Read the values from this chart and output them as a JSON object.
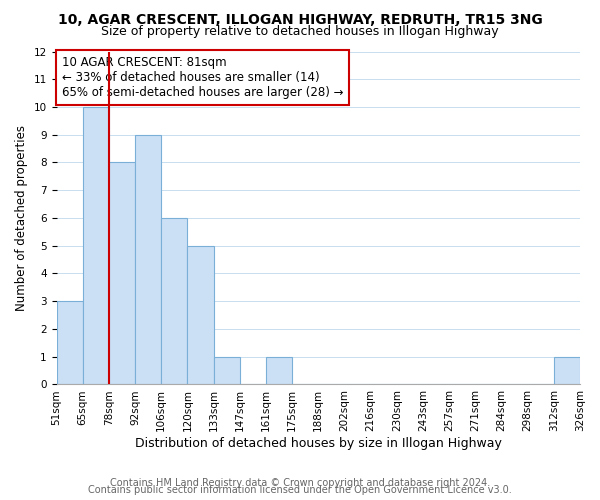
{
  "title": "10, AGAR CRESCENT, ILLOGAN HIGHWAY, REDRUTH, TR15 3NG",
  "subtitle": "Size of property relative to detached houses in Illogan Highway",
  "xlabel": "Distribution of detached houses by size in Illogan Highway",
  "ylabel": "Number of detached properties",
  "bin_labels": [
    "51sqm",
    "65sqm",
    "78sqm",
    "92sqm",
    "106sqm",
    "120sqm",
    "133sqm",
    "147sqm",
    "161sqm",
    "175sqm",
    "188sqm",
    "202sqm",
    "216sqm",
    "230sqm",
    "243sqm",
    "257sqm",
    "271sqm",
    "284sqm",
    "298sqm",
    "312sqm",
    "326sqm"
  ],
  "bar_values": [
    3,
    10,
    8,
    9,
    6,
    5,
    1,
    0,
    1,
    0,
    0,
    0,
    0,
    0,
    0,
    0,
    0,
    0,
    0,
    1
  ],
  "bar_color": "#cce0f5",
  "bar_edge_color": "#7ab0d8",
  "vline_color": "#cc0000",
  "vline_x": 1.5,
  "annotation_text": "10 AGAR CRESCENT: 81sqm\n← 33% of detached houses are smaller (14)\n65% of semi-detached houses are larger (28) →",
  "annotation_box_color": "white",
  "annotation_box_edge_color": "#cc0000",
  "ylim": [
    0,
    12
  ],
  "yticks": [
    0,
    1,
    2,
    3,
    4,
    5,
    6,
    7,
    8,
    9,
    10,
    11,
    12
  ],
  "footer_line1": "Contains HM Land Registry data © Crown copyright and database right 2024.",
  "footer_line2": "Contains public sector information licensed under the Open Government Licence v3.0.",
  "title_fontsize": 10,
  "subtitle_fontsize": 9,
  "xlabel_fontsize": 9,
  "ylabel_fontsize": 8.5,
  "tick_fontsize": 7.5,
  "annotation_fontsize": 8.5,
  "footer_fontsize": 7
}
